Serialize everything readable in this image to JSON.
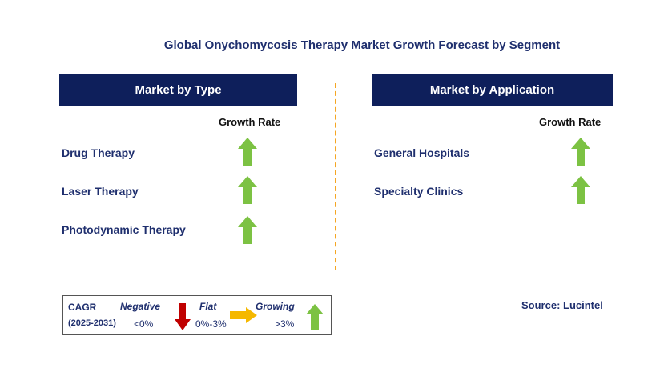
{
  "title": "Global Onychomycosis Therapy Market Growth Forecast by Segment",
  "left_panel": {
    "header": "Market by Type",
    "growth_rate_label": "Growth Rate",
    "items": [
      {
        "label": "Drug Therapy",
        "trend": "growing"
      },
      {
        "label": "Laser Therapy",
        "trend": "growing"
      },
      {
        "label": "Photodynamic Therapy",
        "trend": "growing"
      }
    ]
  },
  "right_panel": {
    "header": "Market by Application",
    "growth_rate_label": "Growth Rate",
    "items": [
      {
        "label": "General Hospitals",
        "trend": "growing"
      },
      {
        "label": "Specialty Clinics",
        "trend": "growing"
      }
    ]
  },
  "legend": {
    "cagr_label": "CAGR",
    "period": "(2025-2031)",
    "negative_label": "Negative",
    "negative_range": "<0%",
    "flat_label": "Flat",
    "flat_range": "0%-3%",
    "growing_label": "Growing",
    "growing_range": ">3%"
  },
  "source": "Source: Lucintel",
  "colors": {
    "header_bg": "#0e1f5b",
    "growing_arrow": "#7cc243",
    "negative_arrow": "#c00000",
    "flat_arrow": "#f5b800",
    "divider": "#f5a623"
  }
}
